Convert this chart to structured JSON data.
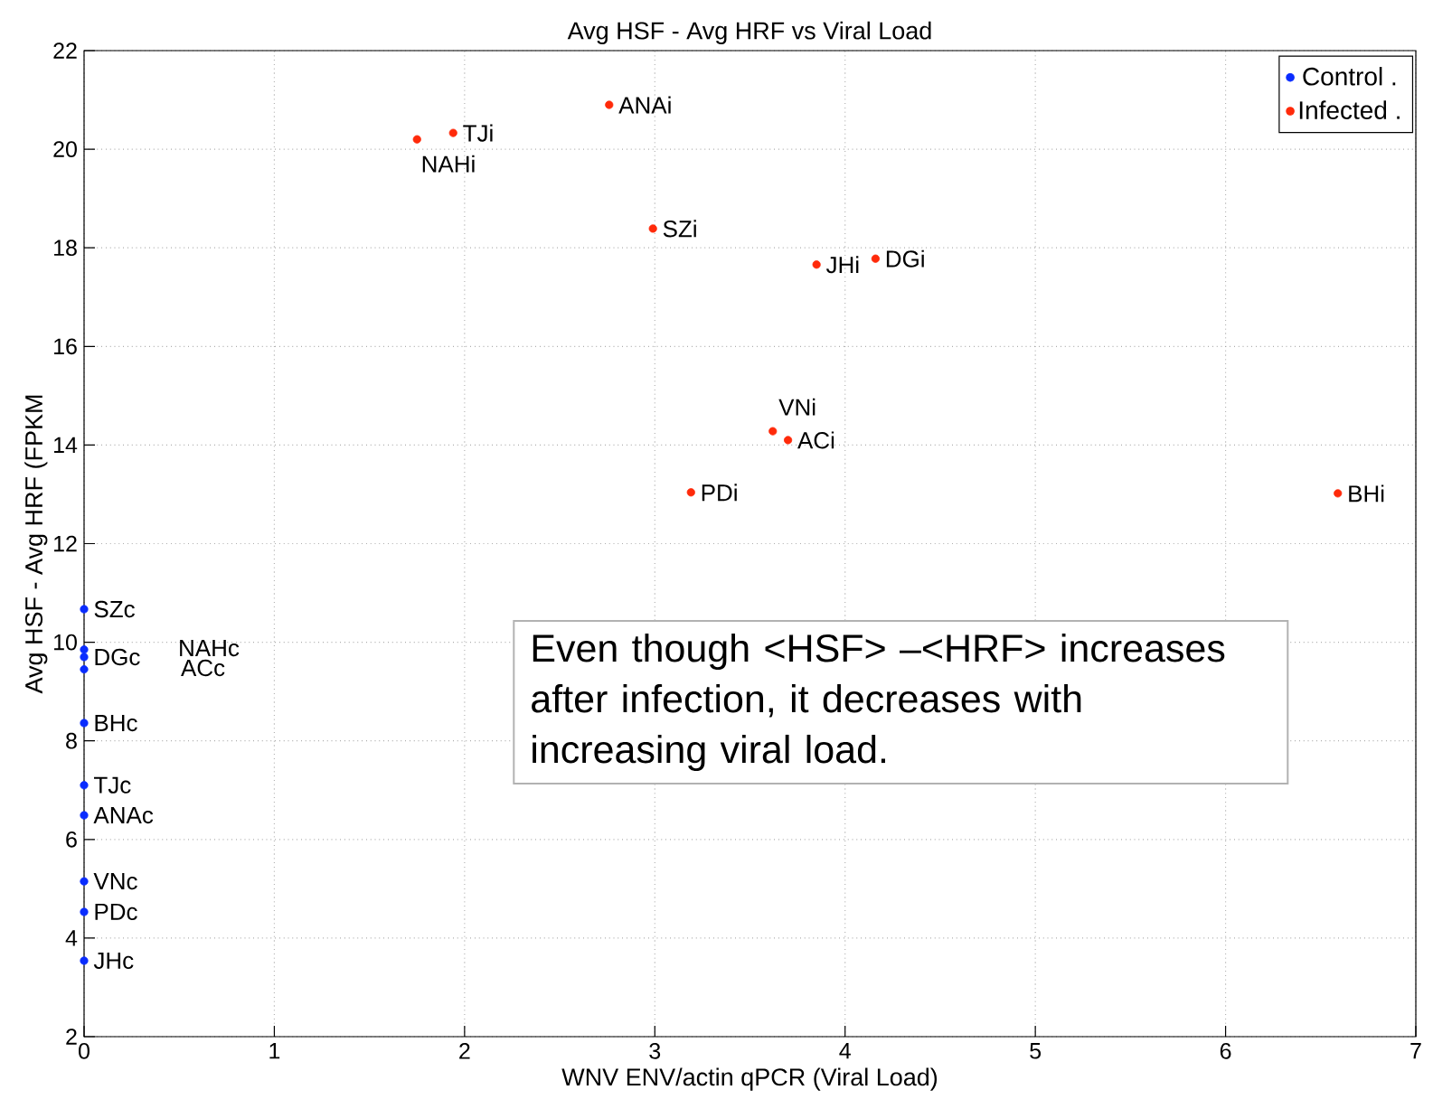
{
  "chart_data": {
    "type": "scatter",
    "title": "Avg HSF - Avg HRF vs Viral Load",
    "xlabel": "WNV ENV/actin qPCR (Viral Load)",
    "ylabel": "Avg HSF - Avg HRF (FPKM",
    "xlim": [
      0,
      7
    ],
    "ylim": [
      2,
      22
    ],
    "xticks": [
      0,
      1,
      2,
      3,
      4,
      5,
      6,
      7
    ],
    "yticks": [
      2,
      4,
      6,
      8,
      10,
      12,
      14,
      16,
      18,
      20,
      22
    ],
    "grid": true,
    "legend": "top right",
    "marker": "circle",
    "series": [
      {
        "name": "Control .",
        "color": "#0a2cff",
        "x": [
          0,
          0,
          0,
          0,
          0,
          0,
          0,
          0,
          0,
          0
        ],
        "values": [
          10.67,
          9.7,
          9.85,
          9.45,
          8.36,
          7.1,
          6.49,
          5.15,
          4.53,
          3.54
        ]
      },
      {
        "name": "Infected .",
        "color": "#ff2a0a",
        "x": [
          1.75,
          1.94,
          2.76,
          2.99,
          3.85,
          4.16,
          3.62,
          3.7,
          3.19,
          6.59
        ],
        "values": [
          20.2,
          20.33,
          20.9,
          18.39,
          17.66,
          17.78,
          14.28,
          14.1,
          13.04,
          13.02
        ]
      }
    ],
    "annotations": [
      {
        "text": "SZc",
        "x": 0,
        "y": 10.67
      },
      {
        "text": "DGc",
        "x": 0,
        "y": 9.7
      },
      "NAHc",
      "ACc",
      {
        "text": "BHc",
        "x": 0,
        "y": 8.36
      },
      {
        "text": "TJc",
        "x": 0,
        "y": 7.1
      },
      {
        "text": "ANAc",
        "x": 0,
        "y": 6.49
      },
      {
        "text": "VNc",
        "x": 0,
        "y": 5.15
      },
      {
        "text": "PDc",
        "x": 0,
        "y": 4.53
      },
      {
        "text": "JHc",
        "x": 0,
        "y": 3.54
      },
      {
        "text": "NAHi",
        "x": 1.75,
        "y": 20.2
      },
      {
        "text": "TJi",
        "x": 1.94,
        "y": 20.33
      },
      {
        "text": "ANAi",
        "x": 2.76,
        "y": 20.9
      },
      {
        "text": "SZi",
        "x": 2.99,
        "y": 18.39
      },
      {
        "text": "JHi",
        "x": 3.85,
        "y": 17.66
      },
      {
        "text": "DGi",
        "x": 4.16,
        "y": 17.78
      },
      {
        "text": "VNi",
        "x": 3.62,
        "y": 14.28
      },
      {
        "text": "ACi",
        "x": 3.7,
        "y": 14.1
      },
      {
        "text": "PDi",
        "x": 3.19,
        "y": 13.04
      },
      {
        "text": "BHi",
        "x": 6.59,
        "y": 13.02
      },
      "Even though <HSF> –<HRF> increases after infection, it decreases with increasing viral load."
    ]
  }
}
